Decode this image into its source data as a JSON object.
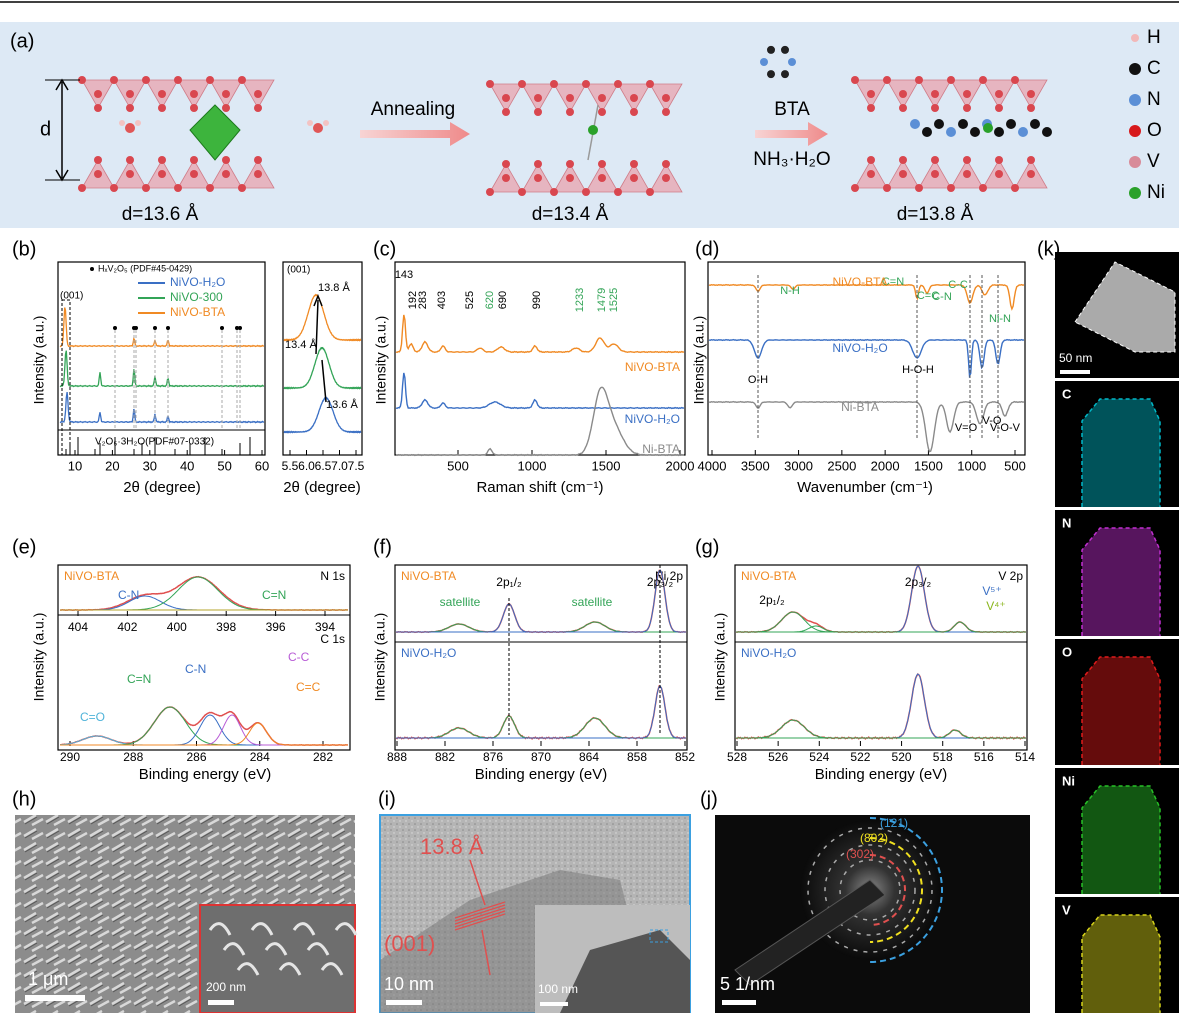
{
  "panels": {
    "a": {
      "label": "(a)",
      "d": "d",
      "structures": [
        "d=13.6 Å",
        "d=13.4 Å",
        "d=13.8 Å"
      ],
      "step1": "Annealing",
      "step2": [
        "BTA",
        "NH₃·H₂O"
      ],
      "legend": [
        "H",
        "C",
        "N",
        "O",
        "V",
        "Ni"
      ]
    },
    "b": {
      "label": "(b)",
      "ylabel": "Intensity (a.u.)",
      "xlabel": "2θ (degree)",
      "xticks": [
        "10",
        "20",
        "30",
        "40",
        "50",
        "60"
      ],
      "legend_marker": "HₓV₂O₅ (PDF#45-0429)",
      "series": [
        "NiVO-H₂O",
        "NiVO-300",
        "NiVO-BTA"
      ],
      "peak": "(001)",
      "reference": "V₂O₅·3H₂O(PDF#07-0332)",
      "inset": {
        "peak": "(001)",
        "xlabel": "2θ (degree)",
        "xticks": [
          "5.5",
          "6.0",
          "6.5",
          "7.0",
          "7.5"
        ],
        "spacings": [
          "13.8 Å",
          "13.4 Å",
          "13.6 Å"
        ]
      }
    },
    "c": {
      "label": "(c)",
      "ylabel": "Intensity (a.u.)",
      "xlabel": "Raman shift (cm⁻¹)",
      "xticks": [
        "500",
        "1000",
        "1500",
        "2000"
      ],
      "peaks": [
        "143",
        "192",
        "283",
        "403",
        "525",
        "620",
        "690",
        "990",
        "1233",
        "1479",
        "1525"
      ],
      "series": [
        "NiVO-BTA",
        "NiVO-H₂O",
        "Ni-BTA"
      ]
    },
    "d": {
      "label": "(d)",
      "ylabel": "Intensity (a.u.)",
      "xlabel": "Wavenumber (cm⁻¹)",
      "xticks": [
        "4000",
        "3500",
        "3000",
        "2500",
        "2000",
        "1500",
        "1000",
        "500"
      ],
      "bands": [
        "N-H",
        "C=N",
        "C=C",
        "C-N",
        "C-C",
        "Ni-N",
        "O-H",
        "H-O-H",
        "V=O",
        "V-O",
        "V-O-V"
      ],
      "series": [
        "NiVO-BTA",
        "NiVO-H₂O",
        "Ni-BTA"
      ]
    },
    "e": {
      "label": "(e)",
      "sample": "NiVO-BTA",
      "ylabel": "Intensity (a.u.)",
      "xlabel": "Binding energy (eV)",
      "top": {
        "core": "N 1s",
        "xticks": [
          "404",
          "402",
          "400",
          "398",
          "396",
          "394"
        ],
        "peaks": [
          "C-N",
          "C=N"
        ]
      },
      "bottom": {
        "core": "C 1s",
        "xticks": [
          "290",
          "288",
          "286",
          "284",
          "282"
        ],
        "peaks": [
          "C=O",
          "C=N",
          "C-N",
          "C-C",
          "C=C"
        ]
      }
    },
    "f": {
      "label": "(f)",
      "ylabel": "Intensity (a.u.)",
      "xlabel": "Binding energy (eV)",
      "xticks": [
        "888",
        "882",
        "876",
        "870",
        "864",
        "858",
        "852"
      ],
      "core": "Ni 2p",
      "samples": [
        "NiVO-BTA",
        "NiVO-H₂O"
      ],
      "peaks": [
        "satellite",
        "2p₁/₂",
        "satellite",
        "2p₃/₂"
      ]
    },
    "g": {
      "label": "(g)",
      "ylabel": "Intensity (a.u.)",
      "xlabel": "Binding energy (eV)",
      "xticks": [
        "528",
        "526",
        "524",
        "522",
        "520",
        "518",
        "516",
        "514"
      ],
      "core": "V 2p",
      "samples": [
        "NiVO-BTA",
        "NiVO-H₂O"
      ],
      "peaks": [
        "2p₁/₂",
        "2p₃/₂",
        "V⁵⁺",
        "V⁴⁺"
      ]
    },
    "h": {
      "label": "(h)",
      "scale": "1 μm",
      "inset_scale": "200 nm"
    },
    "i": {
      "label": "(i)",
      "spacing": "13.8 Å",
      "plane": "(001)",
      "scale": "10 nm",
      "inset_scale": "100 nm"
    },
    "j": {
      "label": "(j)",
      "planes": [
        "(1̄21)",
        "(8̄02)",
        "(302)"
      ],
      "scale": "5 1/nm"
    },
    "k": {
      "label": "(k)",
      "scale": "50 nm",
      "elements": [
        "C",
        "N",
        "O",
        "Ni",
        "V"
      ]
    }
  }
}
